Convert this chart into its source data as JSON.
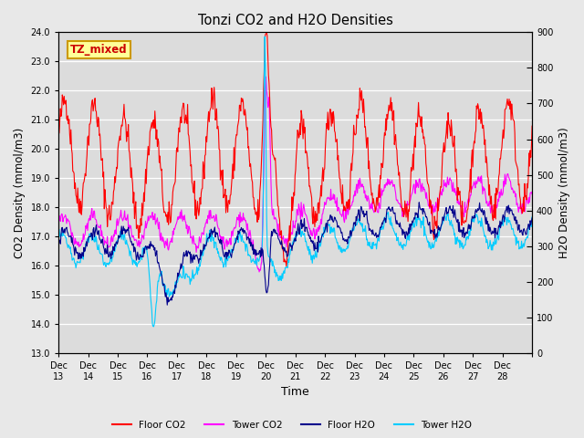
{
  "title": "Tonzi CO2 and H2O Densities",
  "xlabel": "Time",
  "ylabel_left": "CO2 Density (mmol/m3)",
  "ylabel_right": "H2O Density (mmol/m3)",
  "annotation": "TZ_mixed",
  "ylim_left": [
    13.0,
    24.0
  ],
  "ylim_right": [
    0,
    900
  ],
  "yticks_left": [
    13.0,
    14.0,
    15.0,
    16.0,
    17.0,
    18.0,
    19.0,
    20.0,
    21.0,
    22.0,
    23.0,
    24.0
  ],
  "yticks_right": [
    0,
    100,
    200,
    300,
    400,
    500,
    600,
    700,
    800,
    900
  ],
  "xtick_labels": [
    "Dec 13",
    "Dec 14",
    "Dec 15",
    "Dec 16",
    "Dec 17",
    "Dec 18",
    "Dec 19",
    "Dec 20",
    "Dec 21",
    "Dec 22",
    "Dec 23",
    "Dec 24",
    "Dec 25",
    "Dec 26",
    "Dec 27",
    "Dec 28"
  ],
  "n_days": 16,
  "colors": {
    "floor_co2": "#FF0000",
    "tower_co2": "#FF00FF",
    "floor_h2o": "#00008B",
    "tower_h2o": "#00CCFF"
  },
  "legend_labels": [
    "Floor CO2",
    "Tower CO2",
    "Floor H2O",
    "Tower H2O"
  ],
  "fig_facecolor": "#E8E8E8",
  "ax_facecolor": "#DCDCDC",
  "grid_color": "#FFFFFF",
  "annotation_bg": "#FFFF99",
  "annotation_border": "#CC9900",
  "annotation_text_color": "#CC0000",
  "line_width": 0.8,
  "seed": 42
}
